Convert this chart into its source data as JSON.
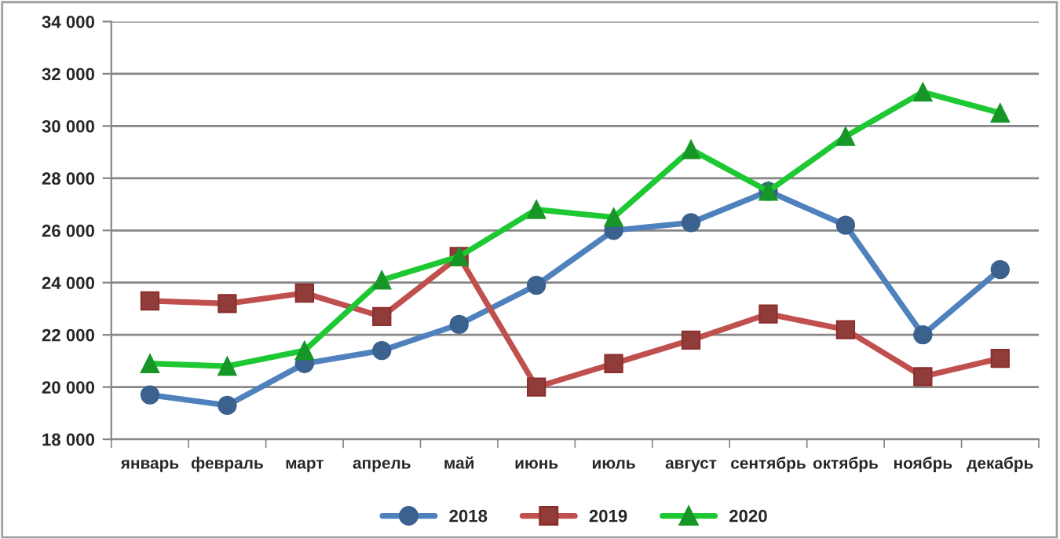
{
  "chart_data": {
    "type": "line",
    "categories": [
      "январь",
      "февраль",
      "март",
      "апрель",
      "май",
      "июнь",
      "июль",
      "август",
      "сентябрь",
      "октябрь",
      "ноябрь",
      "декабрь"
    ],
    "series": [
      {
        "name": "2018",
        "color": "#4f81bd",
        "marker": "circle",
        "values": [
          19700,
          19300,
          20900,
          21400,
          22400,
          23900,
          26000,
          26300,
          27500,
          26200,
          22000,
          24500
        ]
      },
      {
        "name": "2019",
        "color": "#c0504d",
        "marker": "square",
        "values": [
          23300,
          23200,
          23600,
          22700,
          25000,
          20000,
          20900,
          21800,
          22800,
          22200,
          20400,
          21100
        ]
      },
      {
        "name": "2020",
        "color": "#1ec832",
        "marker": "triangle",
        "values": [
          20900,
          20800,
          21400,
          24100,
          25000,
          26800,
          26500,
          29100,
          27500,
          29600,
          31300,
          30500
        ]
      }
    ],
    "ylim": [
      18000,
      34000
    ],
    "yticks": [
      {
        "value": 18000,
        "label": "18 000"
      },
      {
        "value": 20000,
        "label": "20 000"
      },
      {
        "value": 22000,
        "label": "22 000"
      },
      {
        "value": 24000,
        "label": "24 000"
      },
      {
        "value": 26000,
        "label": "26 000"
      },
      {
        "value": 28000,
        "label": "28 000"
      },
      {
        "value": 30000,
        "label": "30 000"
      },
      {
        "value": 32000,
        "label": "32 000"
      },
      {
        "value": 34000,
        "label": "34 000"
      }
    ],
    "grid": "y",
    "legend": "bottom",
    "line_style": "solid"
  }
}
